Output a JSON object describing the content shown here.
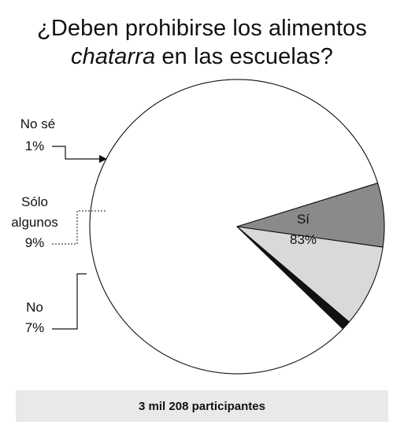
{
  "title": {
    "line1": "¿Deben prohibirse los alimentos",
    "line2_italic": "chatarra",
    "line2_rest": " en las escuelas?"
  },
  "chart_data": {
    "type": "pie",
    "title": "¿Deben prohibirse los alimentos chatarra en las escuelas?",
    "slices": [
      {
        "label": "Sí",
        "value": 83,
        "display": "83%",
        "color": "#ffffff"
      },
      {
        "label": "No",
        "value": 7,
        "display": "7%",
        "color": "#8a8a8a"
      },
      {
        "label": "Sólo algunos",
        "value": 9,
        "display": "9%",
        "color": "#d9d9d9"
      },
      {
        "label": "No sé",
        "value": 1,
        "display": "1%",
        "color": "#111111"
      }
    ]
  },
  "labels": {
    "si": {
      "name": "Sí",
      "pct": "83%"
    },
    "no": {
      "name": "No",
      "pct": "7%"
    },
    "algunos": {
      "name1": "Sólo",
      "name2": "algunos",
      "pct": "9%"
    },
    "nose": {
      "name": "No sé",
      "pct": "1%"
    }
  },
  "footer": {
    "text": "3 mil 208 participantes"
  }
}
